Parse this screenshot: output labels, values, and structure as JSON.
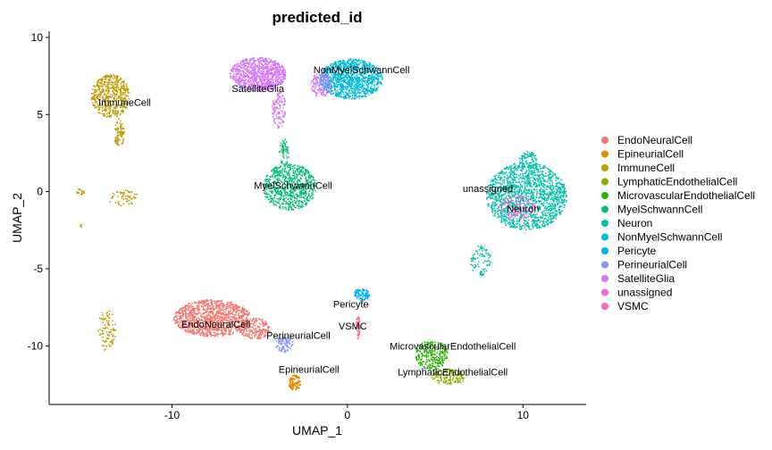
{
  "chart_data": {
    "type": "scatter",
    "title": "predicted_id",
    "xlabel": "UMAP_1",
    "ylabel": "UMAP_2",
    "xlim": [
      -17,
      13.6
    ],
    "ylim": [
      -13.8,
      10.4
    ],
    "xticks": [
      -10,
      0,
      10
    ],
    "yticks": [
      -10,
      -5,
      0,
      5,
      10
    ],
    "grid": false,
    "legend_position": "right",
    "series": [
      {
        "name": "EndoNeuralCell",
        "color": "#F8766D",
        "clusters": [
          {
            "x": -7.7,
            "y": -8.2,
            "rx": 2.2,
            "ry": 1.2,
            "n": 1100
          },
          {
            "x": -5.3,
            "y": -8.9,
            "rx": 0.9,
            "ry": 0.7,
            "n": 200
          }
        ],
        "label": {
          "text": "EndoNeuralCell",
          "x": -7.5,
          "y": -8.6
        }
      },
      {
        "name": "EpineurialCell",
        "color": "#E18A00",
        "clusters": [
          {
            "x": -3.0,
            "y": -12.4,
            "rx": 0.35,
            "ry": 0.5,
            "n": 110
          }
        ],
        "label": {
          "text": "EpineurialCell",
          "x": -2.2,
          "y": -11.5
        }
      },
      {
        "name": "ImmuneCell",
        "color": "#BE9C00",
        "clusters": [
          {
            "x": -13.5,
            "y": 6.2,
            "rx": 1.1,
            "ry": 1.4,
            "n": 500
          },
          {
            "x": -13.0,
            "y": 3.8,
            "rx": 0.3,
            "ry": 0.9,
            "n": 80
          },
          {
            "x": -15.2,
            "y": 0.0,
            "rx": 0.25,
            "ry": 0.2,
            "n": 15
          },
          {
            "x": -12.8,
            "y": -0.4,
            "rx": 0.9,
            "ry": 0.5,
            "n": 60
          },
          {
            "x": -13.7,
            "y": -9.0,
            "rx": 0.5,
            "ry": 1.4,
            "n": 90
          },
          {
            "x": -15.2,
            "y": -2.2,
            "rx": 0.1,
            "ry": 0.1,
            "n": 5
          }
        ],
        "label": {
          "text": "ImmuneCell",
          "x": -12.7,
          "y": 5.8
        }
      },
      {
        "name": "LymphaticEndothelialCell",
        "color": "#8CAB00",
        "clusters": [
          {
            "x": 5.8,
            "y": -12.0,
            "rx": 1.0,
            "ry": 0.5,
            "n": 150
          }
        ],
        "label": {
          "text": "LymphaticEndothelialCell",
          "x": 6.0,
          "y": -11.7
        }
      },
      {
        "name": "MicrovascularEndothelialCell",
        "color": "#24B700",
        "clusters": [
          {
            "x": 4.8,
            "y": -10.6,
            "rx": 0.9,
            "ry": 1.0,
            "n": 250
          }
        ],
        "label": {
          "text": "MicrovascularEndothelialCell",
          "x": 6.0,
          "y": -10.0
        }
      },
      {
        "name": "MyelSchwannCell",
        "color": "#00BE70",
        "clusters": [
          {
            "x": -3.3,
            "y": 0.3,
            "rx": 1.5,
            "ry": 1.5,
            "n": 700
          },
          {
            "x": -3.6,
            "y": 2.5,
            "rx": 0.3,
            "ry": 0.9,
            "n": 60
          }
        ],
        "label": {
          "text": "MyelSchwannCell",
          "x": -3.1,
          "y": 0.4
        }
      },
      {
        "name": "Neuron",
        "color": "#00C1AB",
        "clusters": [
          {
            "x": 10.2,
            "y": -0.3,
            "rx": 2.3,
            "ry": 2.2,
            "n": 1500
          },
          {
            "x": 7.6,
            "y": -4.5,
            "rx": 0.6,
            "ry": 1.0,
            "n": 90
          },
          {
            "x": 10.3,
            "y": 2.0,
            "rx": 0.5,
            "ry": 0.6,
            "n": 80
          }
        ],
        "label": {
          "text": "Neuron",
          "x": 10.0,
          "y": -1.1
        }
      },
      {
        "name": "NonMyelSchwannCell",
        "color": "#00BBDA",
        "clusters": [
          {
            "x": 0.2,
            "y": 7.3,
            "rx": 1.8,
            "ry": 1.3,
            "n": 1100
          }
        ],
        "label": {
          "text": "NonMyelSchwannCell",
          "x": 0.8,
          "y": 7.9
        }
      },
      {
        "name": "Pericyte",
        "color": "#00ACFC",
        "clusters": [
          {
            "x": 0.8,
            "y": -6.7,
            "rx": 0.45,
            "ry": 0.4,
            "n": 100
          }
        ],
        "label": {
          "text": "Pericyte",
          "x": 0.2,
          "y": -7.3
        }
      },
      {
        "name": "PerineurialCell",
        "color": "#8B93FF",
        "clusters": [
          {
            "x": -3.6,
            "y": -9.9,
            "rx": 0.5,
            "ry": 0.5,
            "n": 90
          }
        ],
        "label": {
          "text": "PerineurialCell",
          "x": -2.8,
          "y": -9.3
        }
      },
      {
        "name": "SatelliteGlia",
        "color": "#D575FE",
        "clusters": [
          {
            "x": -5.1,
            "y": 7.6,
            "rx": 1.6,
            "ry": 1.1,
            "n": 900
          },
          {
            "x": -3.9,
            "y": 5.3,
            "rx": 0.4,
            "ry": 1.2,
            "n": 120
          },
          {
            "x": -1.5,
            "y": 6.9,
            "rx": 0.6,
            "ry": 0.8,
            "n": 150
          }
        ],
        "label": {
          "text": "SatelliteGlia",
          "x": -5.1,
          "y": 6.7
        }
      },
      {
        "name": "unassigned",
        "color": "#F962DD",
        "clusters": [
          {
            "x": 9.7,
            "y": -1.0,
            "rx": 1.1,
            "ry": 0.8,
            "n": 120
          }
        ],
        "label": {
          "text": "unassigned",
          "x": 8.0,
          "y": 0.2
        }
      },
      {
        "name": "VSMC",
        "color": "#FF65AC",
        "clusters": [
          {
            "x": 0.6,
            "y": -8.8,
            "rx": 0.12,
            "ry": 0.8,
            "n": 50
          }
        ],
        "label": {
          "text": "VSMC",
          "x": 0.3,
          "y": -8.7
        }
      }
    ]
  }
}
